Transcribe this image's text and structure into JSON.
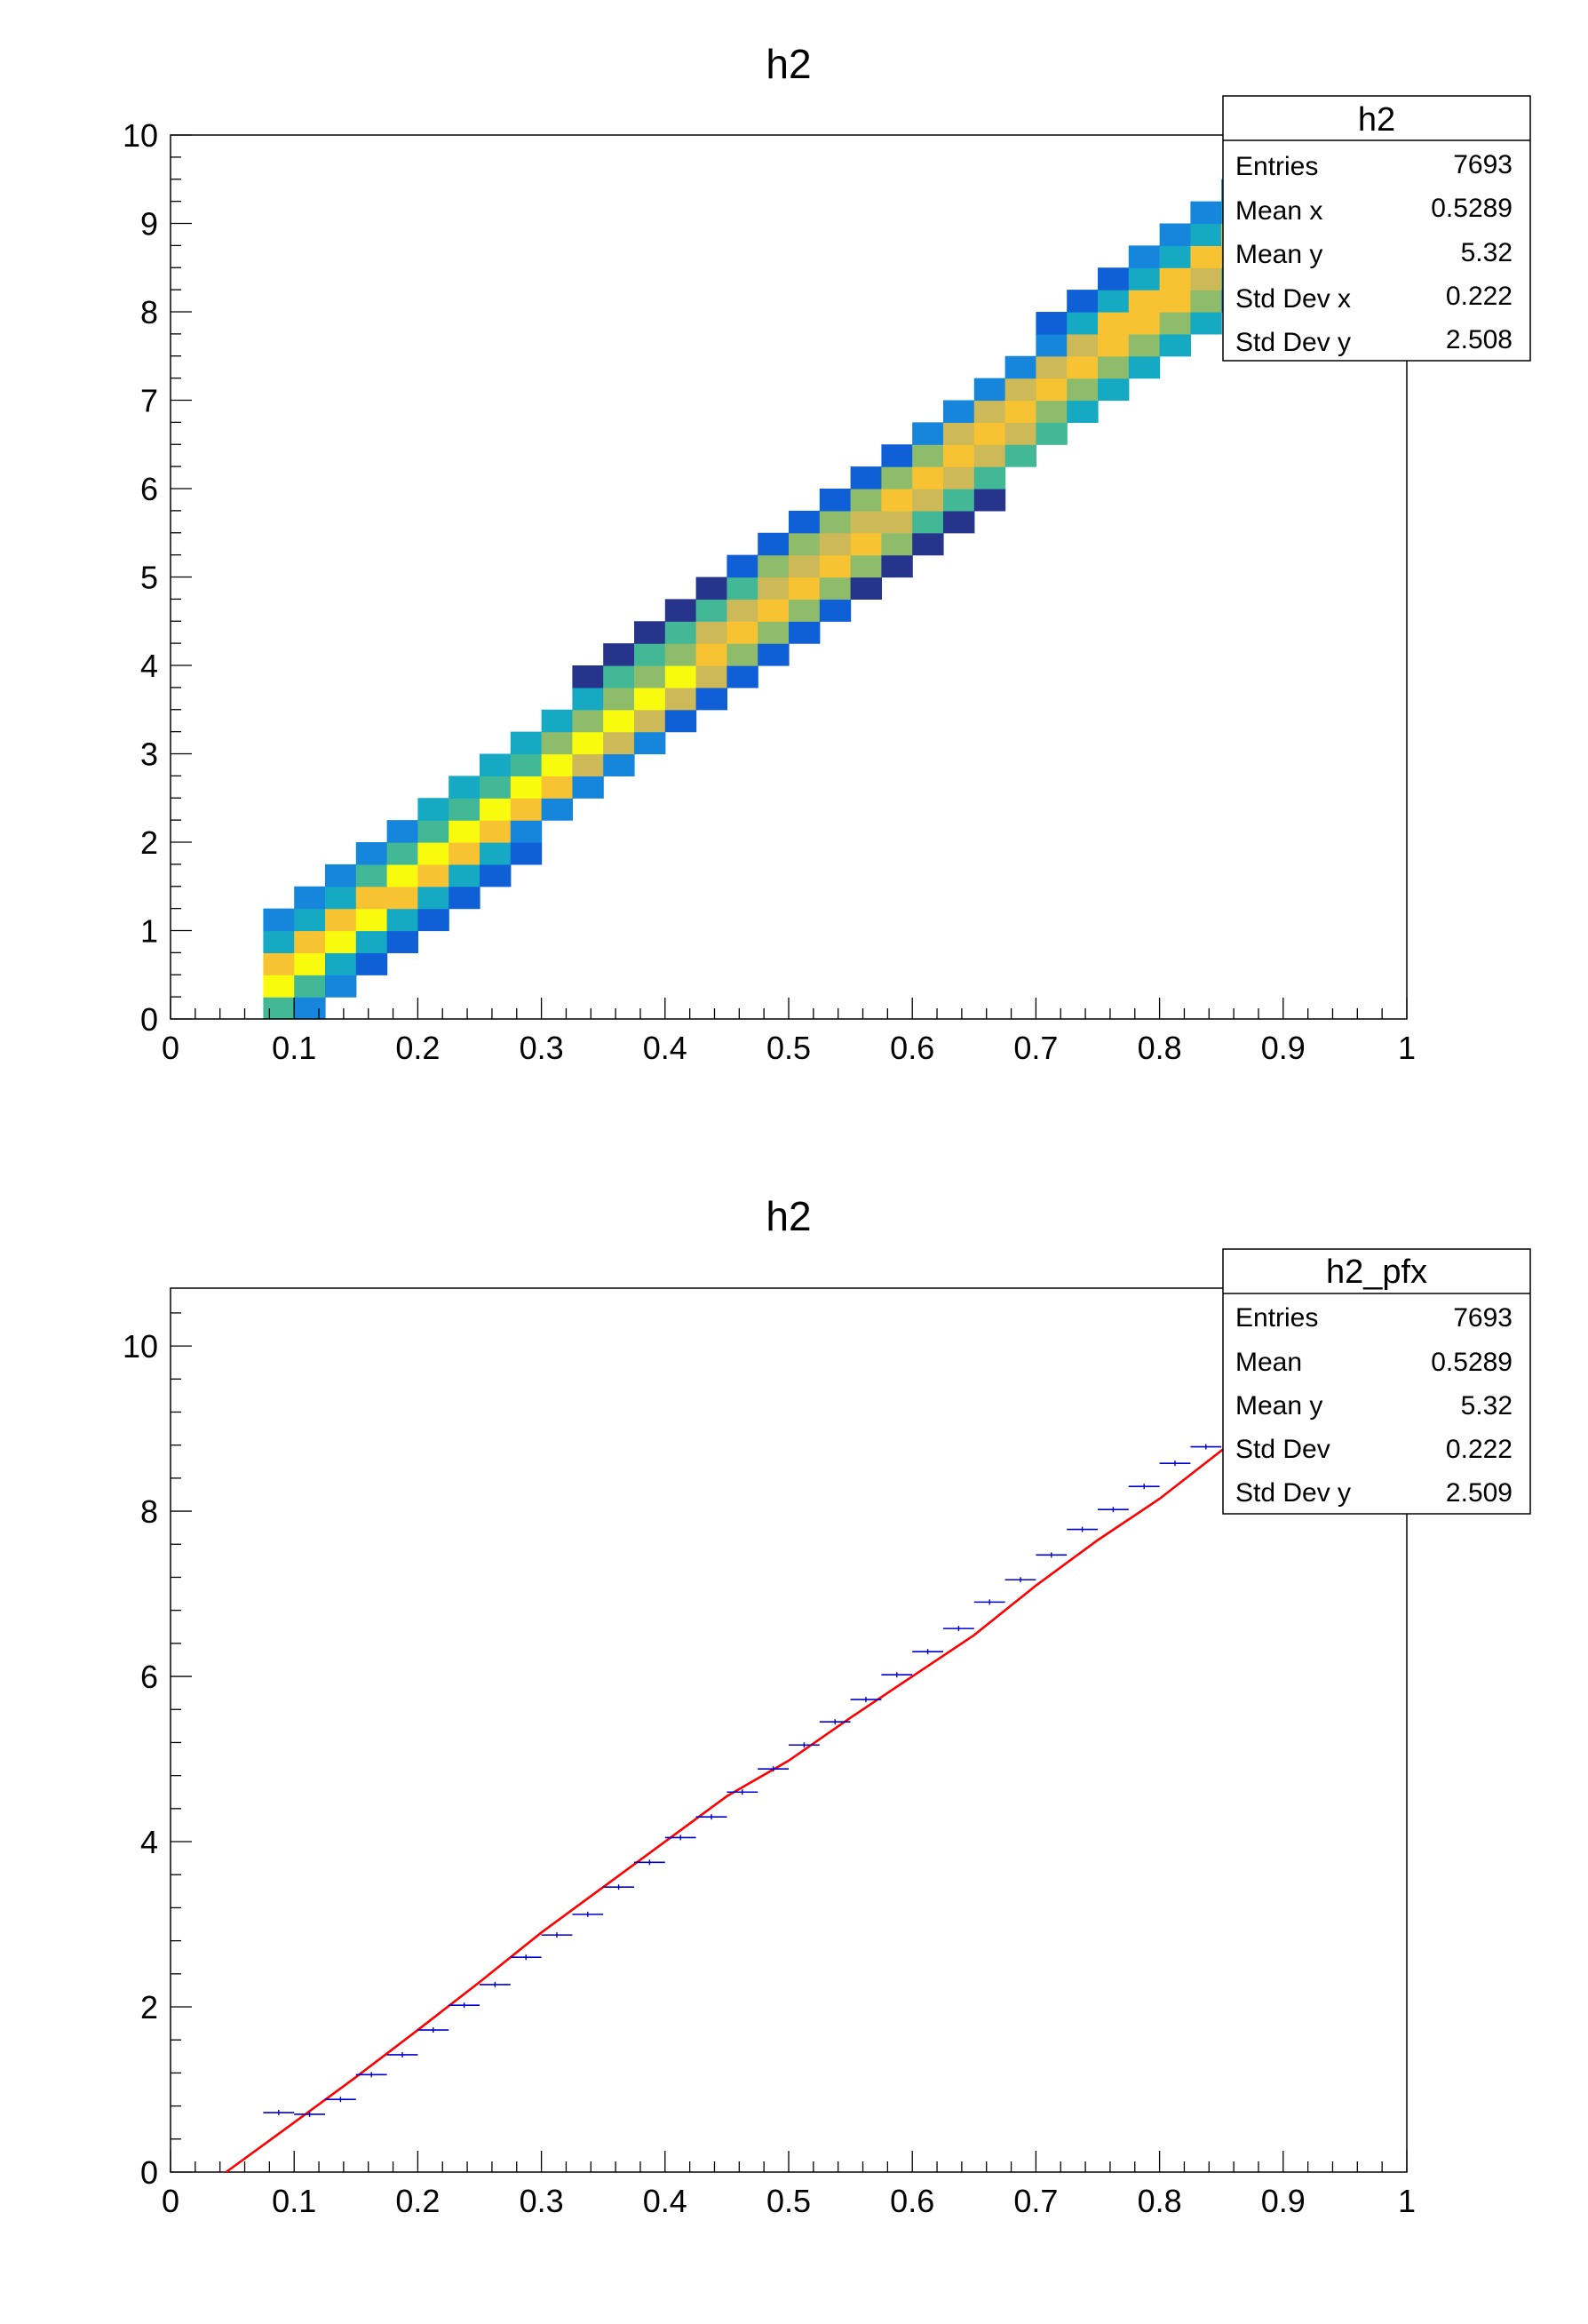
{
  "chart_data": [
    {
      "type": "heatmap",
      "title": "h2",
      "xlim": [
        0,
        1
      ],
      "ylim": [
        0,
        10
      ],
      "x_ticks": [
        "0",
        "0.1",
        "0.2",
        "0.3",
        "0.4",
        "0.5",
        "0.6",
        "0.7",
        "0.8",
        "0.9",
        "1"
      ],
      "y_ticks": [
        "0",
        "1",
        "2",
        "3",
        "4",
        "5",
        "6",
        "7",
        "8",
        "9",
        "10"
      ],
      "bin_width_x": 0.025,
      "bin_width_y": 0.25,
      "colormap": [
        "#27348b",
        "#0f5fd6",
        "#1685dc",
        "#16a9c4",
        "#42b896",
        "#8fbc6a",
        "#cdb957",
        "#f7c332",
        "#f9fb0e"
      ],
      "stats": {
        "name": "h2",
        "rows": [
          {
            "label": "Entries",
            "value": "7693"
          },
          {
            "label": "Mean x",
            "value": "0.5289"
          },
          {
            "label": "Mean y",
            "value": "5.32"
          },
          {
            "label": "Std Dev x",
            "value": "0.222"
          },
          {
            "label": "Std Dev y",
            "value": "2.508"
          }
        ]
      }
    },
    {
      "type": "line",
      "title": "h2",
      "xlim": [
        0,
        1
      ],
      "ylim": [
        0,
        10.7
      ],
      "x_ticks": [
        "0",
        "0.1",
        "0.2",
        "0.3",
        "0.4",
        "0.5",
        "0.6",
        "0.7",
        "0.8",
        "0.9",
        "1"
      ],
      "y_ticks": [
        "0",
        "2",
        "4",
        "6",
        "8",
        "10"
      ],
      "profile_color": "#0000cc",
      "fit_color": "#ff0000",
      "profile": {
        "x": [
          0.0875,
          0.1125,
          0.1375,
          0.1625,
          0.1875,
          0.2125,
          0.2375,
          0.2625,
          0.2875,
          0.3125,
          0.3375,
          0.3625,
          0.3875,
          0.4125,
          0.4375,
          0.4625,
          0.4875,
          0.5125,
          0.5375,
          0.5625,
          0.5875,
          0.6125,
          0.6375,
          0.6625,
          0.6875,
          0.7125,
          0.7375,
          0.7625,
          0.7875,
          0.8125,
          0.8375
        ],
        "y": [
          0.72,
          0.7,
          0.88,
          1.18,
          1.42,
          1.72,
          2.02,
          2.27,
          2.6,
          2.87,
          3.12,
          3.45,
          3.75,
          4.05,
          4.3,
          4.6,
          4.88,
          5.17,
          5.45,
          5.72,
          6.02,
          6.3,
          6.58,
          6.9,
          7.17,
          7.47,
          7.78,
          8.02,
          8.3,
          8.58,
          8.78
        ]
      },
      "fit": {
        "x": [
          0.045,
          0.1,
          0.15,
          0.2,
          0.25,
          0.3,
          0.35,
          0.4,
          0.45,
          0.5,
          0.55,
          0.6,
          0.65,
          0.7,
          0.75,
          0.8,
          0.86
        ],
        "y": [
          0.0,
          0.6,
          1.15,
          1.72,
          2.3,
          2.9,
          3.45,
          4.0,
          4.55,
          4.98,
          5.5,
          6.0,
          6.5,
          7.1,
          7.65,
          8.15,
          8.85
        ]
      },
      "stats": {
        "name": "h2_pfx",
        "rows": [
          {
            "label": "Entries",
            "value": "7693"
          },
          {
            "label": "Mean",
            "value": "0.5289"
          },
          {
            "label": "Mean y",
            "value": "5.32"
          },
          {
            "label": "Std Dev",
            "value": "0.222"
          },
          {
            "label": "Std Dev y",
            "value": "2.509"
          }
        ]
      }
    }
  ]
}
